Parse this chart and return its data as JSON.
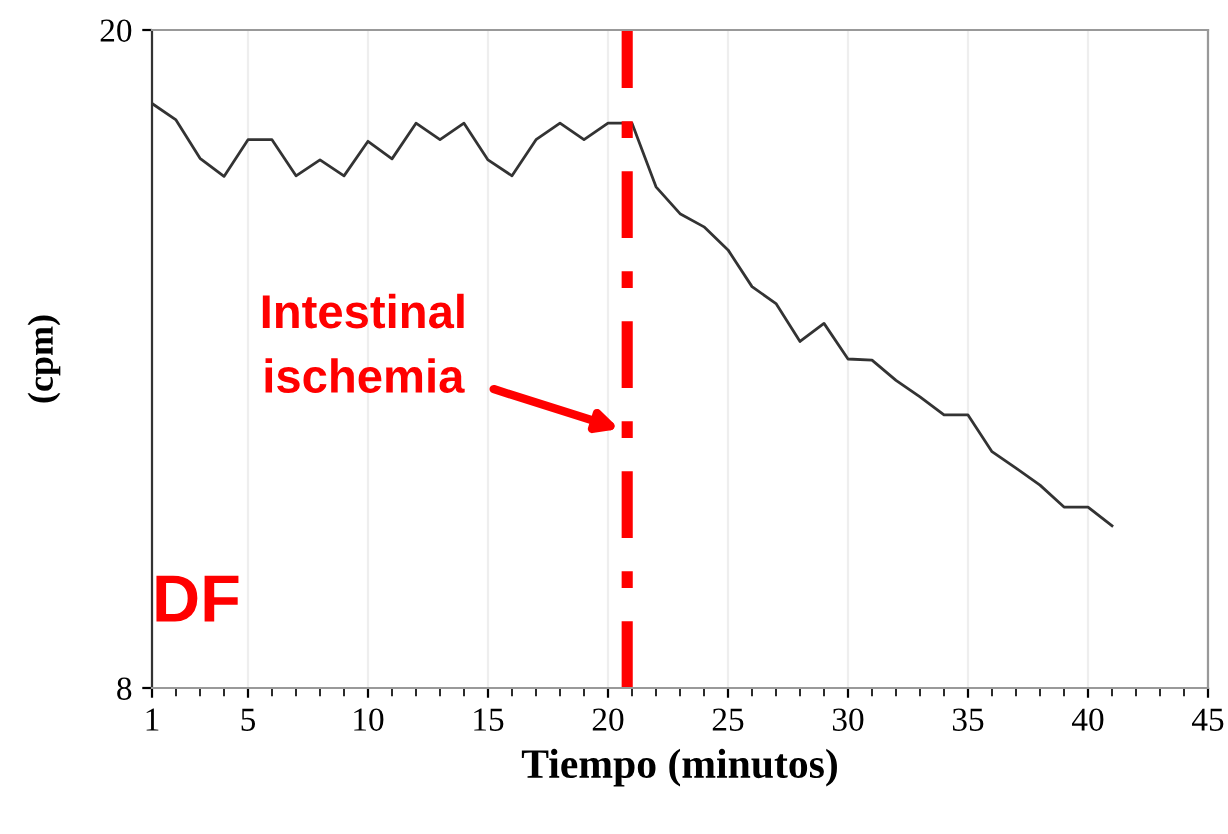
{
  "chart_data": {
    "type": "line",
    "xlabel": "Tiempo (minutos)",
    "ylabel": "(cpm)",
    "xlim": [
      1,
      45
    ],
    "xticks": [
      1,
      5,
      10,
      15,
      20,
      25,
      30,
      35,
      40,
      45
    ],
    "ylim": [
      8,
      20
    ],
    "yticks": [
      8,
      20
    ],
    "grid": "x",
    "x": [
      1,
      2,
      3,
      4,
      5,
      6,
      7,
      8,
      9,
      10,
      11,
      12,
      13,
      14,
      15,
      16,
      17,
      18,
      19,
      20,
      21,
      22,
      23,
      24,
      25,
      26,
      27,
      28,
      29,
      30,
      31,
      32,
      33,
      34,
      35,
      36,
      37,
      38,
      39,
      40,
      41
    ],
    "series": [
      {
        "color": "#333333",
        "values": [
          18.66,
          18.36,
          17.66,
          17.33,
          18.0,
          18.0,
          17.34,
          17.63,
          17.34,
          17.97,
          17.65,
          18.3,
          18.0,
          18.3,
          17.63,
          17.34,
          18.0,
          18.3,
          18.0,
          18.3,
          18.3,
          17.14,
          16.65,
          16.41,
          15.99,
          15.32,
          15.01,
          14.32,
          14.65,
          14.0,
          13.98,
          13.61,
          13.31,
          12.98,
          12.98,
          12.31,
          12.01,
          11.7,
          11.3,
          11.3,
          10.96
        ]
      }
    ],
    "ref_lines": [
      {
        "axis": "x",
        "value": 20.8,
        "color": "#ff0000",
        "line_style": "dashdot"
      }
    ],
    "annotations": [
      "Intestinal\nischemia",
      "DF"
    ],
    "legend": false,
    "marker": "none",
    "line_style": "solid"
  }
}
